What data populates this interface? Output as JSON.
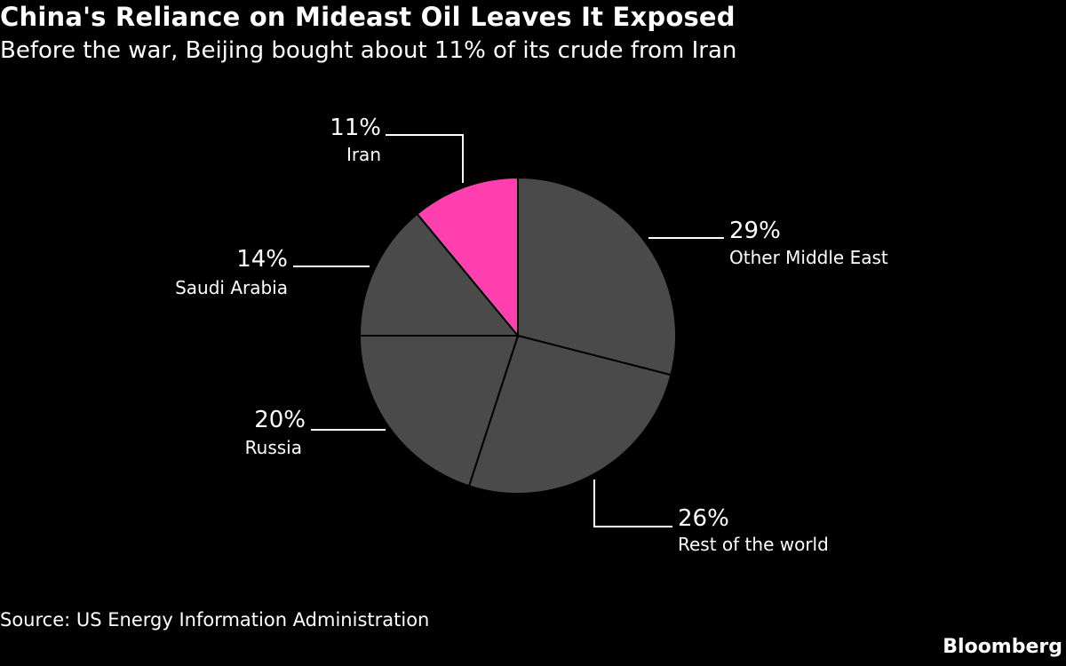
{
  "header": {
    "title": "China's Reliance on Mideast Oil Leaves It Exposed",
    "subtitle": "Before the war, Beijing bought about 11% of its crude from Iran"
  },
  "footer": {
    "source": "Source: US Energy Information Administration",
    "brand": "Bloomberg"
  },
  "colors": {
    "background": "#000000",
    "slice_default": "#4a4a4a",
    "slice_highlight": "#ff3fae",
    "slice_border": "#000000",
    "text": "#ffffff"
  },
  "chart_data": {
    "type": "pie",
    "title": "China's Reliance on Mideast Oil Leaves It Exposed",
    "subtitle": "Before the war, Beijing bought about 11% of its crude from Iran",
    "start": "12 o'clock, clockwise",
    "slices": [
      {
        "label": "Other Middle East",
        "value": 29,
        "display": "29%",
        "highlight": false
      },
      {
        "label": "Rest of the world",
        "value": 26,
        "display": "26%",
        "highlight": false
      },
      {
        "label": "Russia",
        "value": 20,
        "display": "20%",
        "highlight": false
      },
      {
        "label": "Saudi Arabia",
        "value": 14,
        "display": "14%",
        "highlight": false
      },
      {
        "label": "Iran",
        "value": 11,
        "display": "11%",
        "highlight": true
      }
    ]
  }
}
